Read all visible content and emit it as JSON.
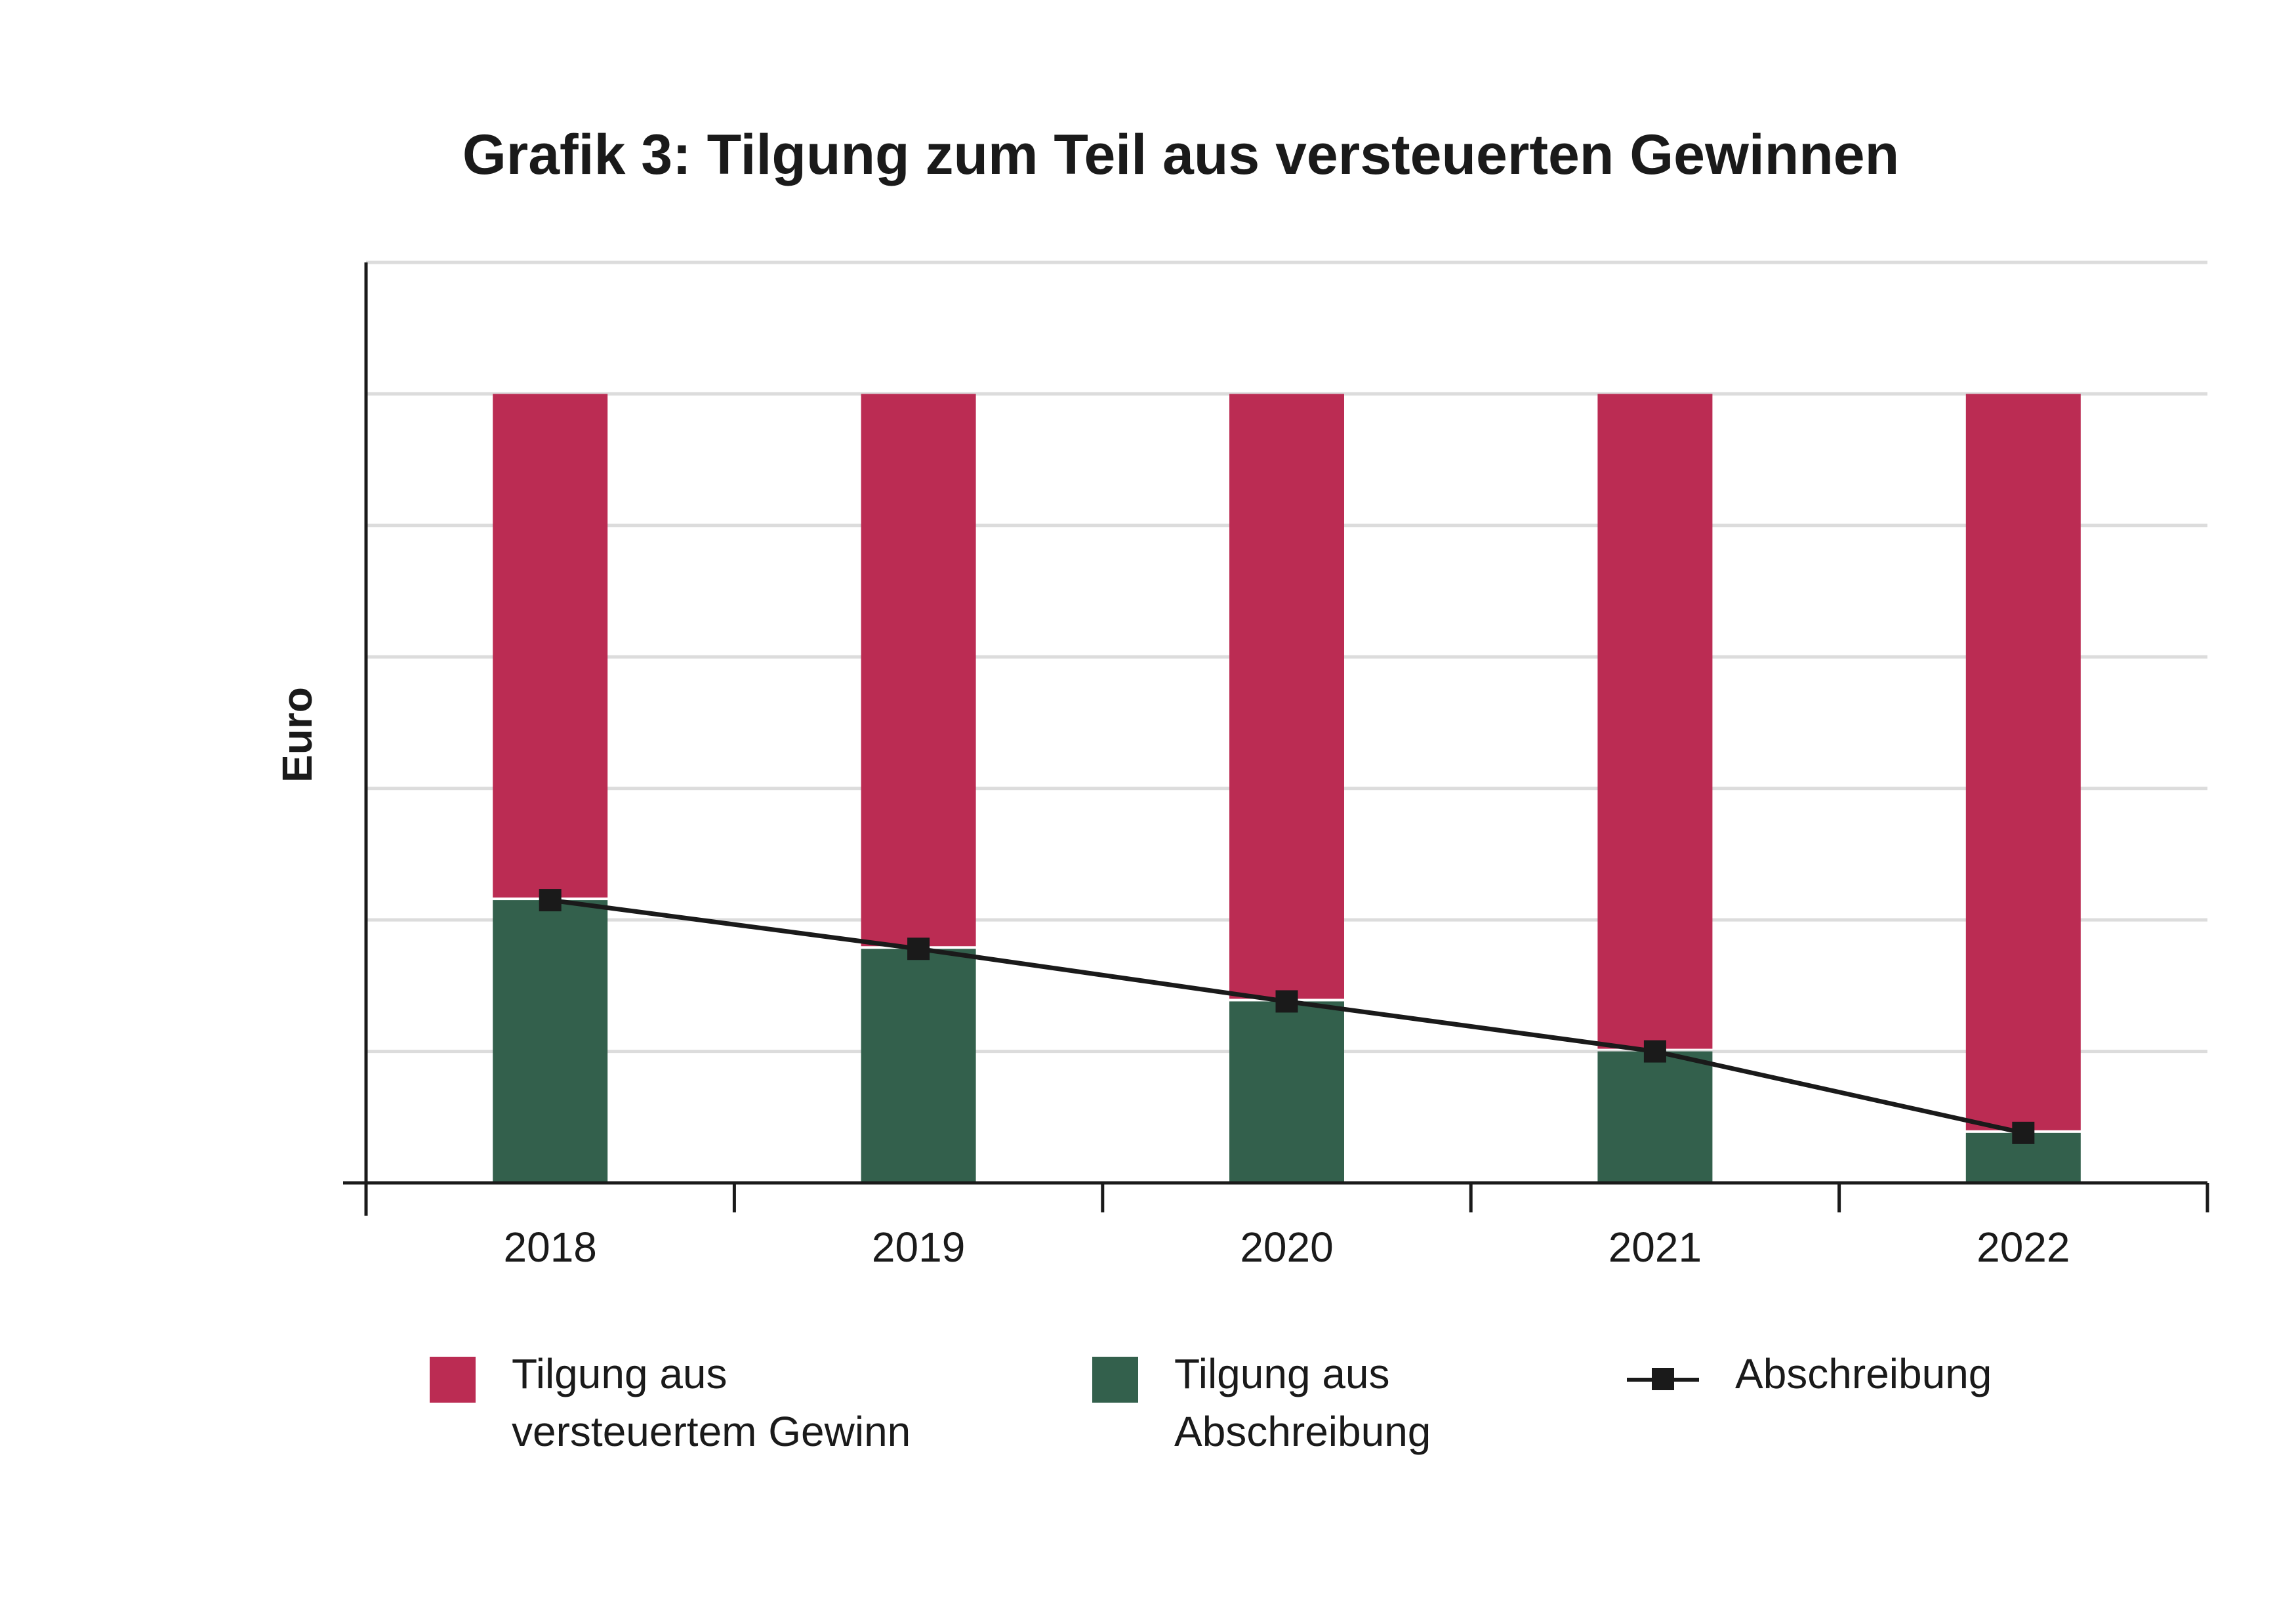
{
  "chart_data": {
    "type": "bar",
    "stacked": true,
    "title": "Grafik 3: Tilgung zum Teil aus versteuerten Gewinnen",
    "xlabel": "",
    "ylabel": "Euro",
    "categories": [
      "2018",
      "2019",
      "2020",
      "2021",
      "2022"
    ],
    "ylim": [
      0,
      7
    ],
    "grid": true,
    "legend_position": "bottom",
    "series": [
      {
        "name": "Tilgung aus Abschreibung",
        "type": "bar",
        "color": "#33604c",
        "values": [
          2.15,
          1.78,
          1.38,
          1.0,
          0.38
        ]
      },
      {
        "name": "Tilgung aus versteuertem Gewinn",
        "type": "bar",
        "color": "#bb2c53",
        "values": [
          3.85,
          4.22,
          4.62,
          5.0,
          5.62
        ]
      },
      {
        "name": "Abschreibung",
        "type": "line",
        "marker": "square",
        "color": "#1a1a1a",
        "values": [
          2.15,
          1.78,
          1.38,
          1.0,
          0.38
        ]
      }
    ]
  },
  "legend": {
    "items": [
      {
        "line1": "Tilgung aus",
        "line2": "versteuertem Gewinn",
        "color": "#bb2c53"
      },
      {
        "line1": "Tilgung aus",
        "line2": "Abschreibung",
        "color": "#33604c"
      },
      {
        "line1": "Abschreibung",
        "color": "#1a1a1a"
      }
    ]
  }
}
